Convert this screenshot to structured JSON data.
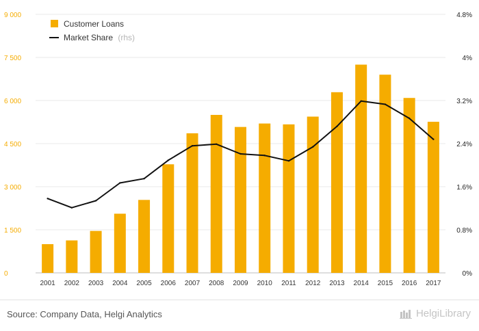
{
  "chart_data": {
    "type": "bar",
    "categories": [
      "2001",
      "2002",
      "2003",
      "2004",
      "2005",
      "2006",
      "2007",
      "2008",
      "2009",
      "2010",
      "2011",
      "2012",
      "2013",
      "2014",
      "2015",
      "2016",
      "2017"
    ],
    "series": [
      {
        "name": "Customer Loans",
        "type": "bar",
        "axis": "left",
        "color": "#f5ac00",
        "values": [
          1000,
          1130,
          1460,
          2060,
          2540,
          3780,
          4860,
          5500,
          5080,
          5200,
          5170,
          5440,
          6290,
          7250,
          6900,
          6090,
          5260
        ]
      },
      {
        "name": "Market Share",
        "type": "line",
        "axis": "right",
        "color": "#111111",
        "values": [
          1.38,
          1.21,
          1.34,
          1.67,
          1.75,
          2.09,
          2.36,
          2.39,
          2.21,
          2.18,
          2.08,
          2.34,
          2.72,
          3.19,
          3.13,
          2.87,
          2.48
        ]
      }
    ],
    "y_left": {
      "ylim": [
        0,
        9000
      ],
      "ticks": [
        0,
        1500,
        3000,
        4500,
        6000,
        7500,
        9000
      ],
      "tick_labels": [
        "0",
        "1 500",
        "3 000",
        "4 500",
        "6 000",
        "7 500",
        "9 000"
      ],
      "color": "#f5ac00"
    },
    "y_right": {
      "ylim": [
        0,
        4.8
      ],
      "ticks": [
        0,
        0.8,
        1.6,
        2.4,
        3.2,
        4,
        4.8
      ],
      "tick_labels": [
        "0%",
        "0.8%",
        "1.6%",
        "2.4%",
        "3.2%",
        "4%",
        "4.8%"
      ],
      "color": "#222222"
    },
    "legend": {
      "placement": "top-left",
      "items": [
        {
          "label": "Customer Loans",
          "note": ""
        },
        {
          "label": "Market Share",
          "note": "(rhs)"
        }
      ]
    },
    "grid": true
  },
  "footer": {
    "source": "Source: Company Data, Helgi Analytics",
    "brand": "HelgiLibrary"
  }
}
